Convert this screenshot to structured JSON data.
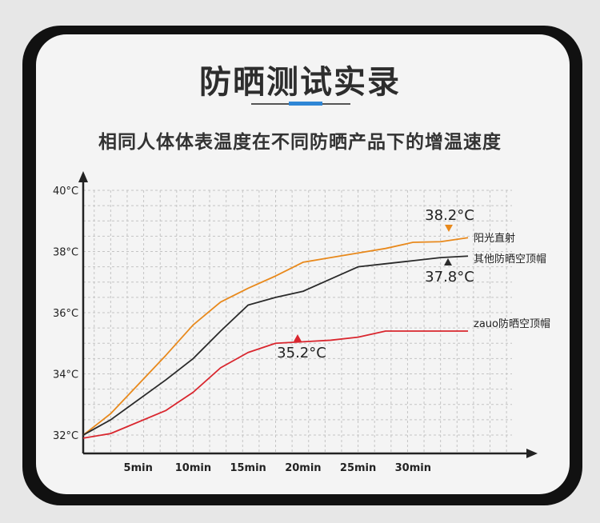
{
  "header": {
    "title": "防晒测试实录",
    "subtitle": "相同人体体表温度在不同防晒产品下的增温速度"
  },
  "chart_data": {
    "type": "line",
    "x": [
      0,
      2.5,
      7.5,
      12.5,
      17.5,
      22.5,
      27.5,
      32.5
    ],
    "xticks": [
      5,
      10,
      15,
      20,
      25,
      30
    ],
    "xtick_labels": [
      "5min",
      "10min",
      "15min",
      "20min",
      "25min",
      "30min"
    ],
    "yticks": [
      32,
      34,
      36,
      38,
      40
    ],
    "ytick_labels": [
      "32°C",
      "34°C",
      "36°C",
      "38°C",
      "40°C"
    ],
    "xlim": [
      0,
      39
    ],
    "ylim": [
      31.4,
      40
    ],
    "grid": true,
    "series": [
      {
        "name": "阳光直射",
        "color": "#e8891c",
        "x": [
          0,
          2.5,
          7.5,
          10,
          12.5,
          15,
          17.5,
          20,
          22.5,
          25,
          27.5,
          30,
          32.5,
          35
        ],
        "values": [
          32.0,
          32.7,
          34.6,
          35.6,
          36.35,
          36.8,
          37.2,
          37.65,
          37.8,
          37.95,
          38.1,
          38.3,
          38.32,
          38.45
        ]
      },
      {
        "name": "其他防晒空顶帽",
        "color": "#2a2a2a",
        "x": [
          0,
          2.5,
          7.5,
          10,
          12.5,
          15,
          17.5,
          20,
          22.5,
          25,
          27.5,
          30,
          32.5,
          35
        ],
        "values": [
          32.0,
          32.5,
          33.8,
          34.5,
          35.4,
          36.25,
          36.5,
          36.7,
          37.1,
          37.5,
          37.6,
          37.7,
          37.8,
          37.85
        ]
      },
      {
        "name": "zauo防晒空顶帽",
        "color": "#d9262e",
        "x": [
          0,
          2.5,
          7.5,
          10,
          12.5,
          15,
          17.5,
          20,
          22.5,
          25,
          27.5,
          30,
          32.5,
          35
        ],
        "values": [
          31.9,
          32.05,
          32.8,
          33.4,
          34.2,
          34.7,
          35.0,
          35.05,
          35.1,
          35.2,
          35.4,
          35.4,
          35.4,
          35.4
        ]
      }
    ],
    "annotations": [
      {
        "text": "38.2°C",
        "series": 0,
        "marker": "down-triangle",
        "color": "#e8891c"
      },
      {
        "text": "37.8°C",
        "series": 1,
        "marker": "up-triangle",
        "color": "#2a2a2a"
      },
      {
        "text": "35.2°C",
        "series": 2,
        "marker": "up-triangle",
        "color": "#d9262e"
      }
    ]
  }
}
